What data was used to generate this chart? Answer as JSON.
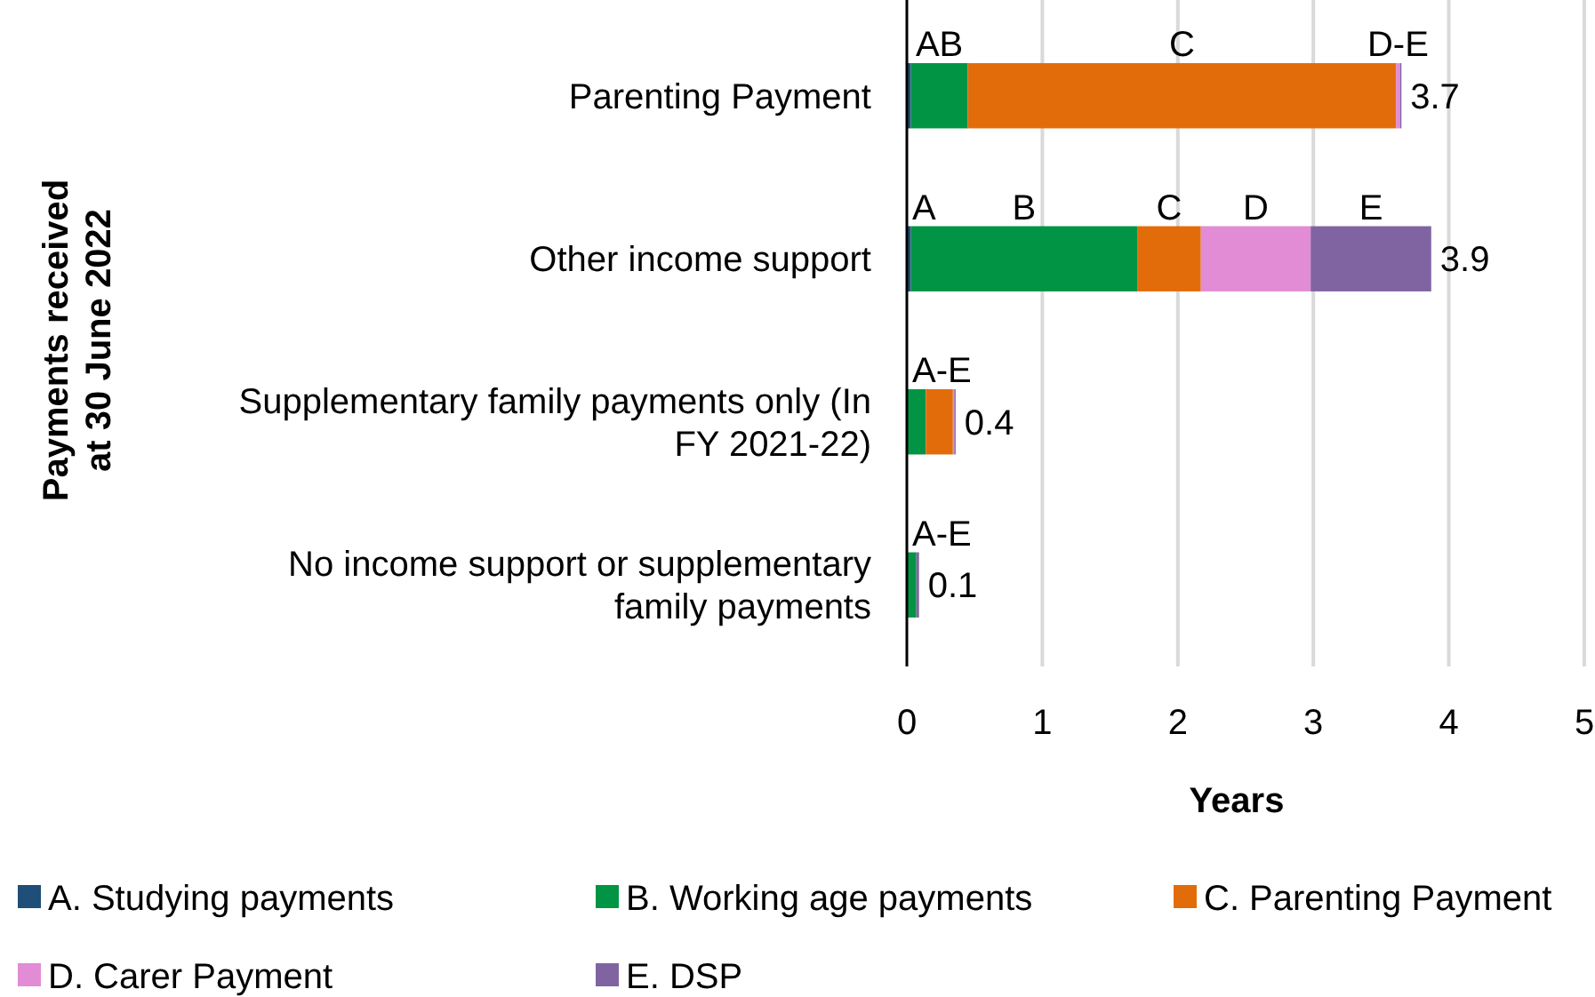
{
  "chart_data": {
    "type": "bar",
    "orientation": "horizontal",
    "stacked": true,
    "xlabel": "Years",
    "ylabel": "Payments received at 30 June 2022",
    "categories": [
      "Parenting Payment",
      "Other income support",
      "Supplementary family payments only (In FY 2021-22)",
      "No income support or supplementary family payments"
    ],
    "series": [
      {
        "name": "A. Studying payments",
        "color": "#1f4e79",
        "values": [
          0.03,
          0.03,
          null,
          null
        ],
        "value_labels": [
          null,
          "A",
          null,
          null
        ]
      },
      {
        "name": "B. Working age payments",
        "color": "#009444",
        "values": [
          0.42,
          1.67,
          0.14,
          0.07
        ],
        "value_labels": [
          "AB",
          "B",
          null,
          "A-E"
        ]
      },
      {
        "name": "C. Parenting Payment",
        "color": "#e36c0a",
        "values": [
          3.16,
          0.47,
          0.2,
          0
        ],
        "value_labels": [
          "C",
          "C",
          "A-E",
          null
        ]
      },
      {
        "name": "D. Carer Payment",
        "color": "#e18cd4",
        "values": [
          0.03,
          0.81,
          0.01,
          0
        ],
        "value_labels": [
          "D-E",
          "D",
          null,
          null
        ]
      },
      {
        "name": "E. DSP",
        "color": "#8064a2",
        "values": [
          0.01,
          0.89,
          0.01,
          0.02
        ],
        "value_labels": [
          null,
          "E",
          null,
          null
        ]
      }
    ],
    "totals": [
      "3.7",
      "3.9",
      "0.4",
      "0.1"
    ],
    "xlim": [
      0,
      5
    ],
    "xticks": [
      0,
      1,
      2,
      3,
      4,
      5
    ],
    "grid": "x",
    "legend": "bottom"
  }
}
